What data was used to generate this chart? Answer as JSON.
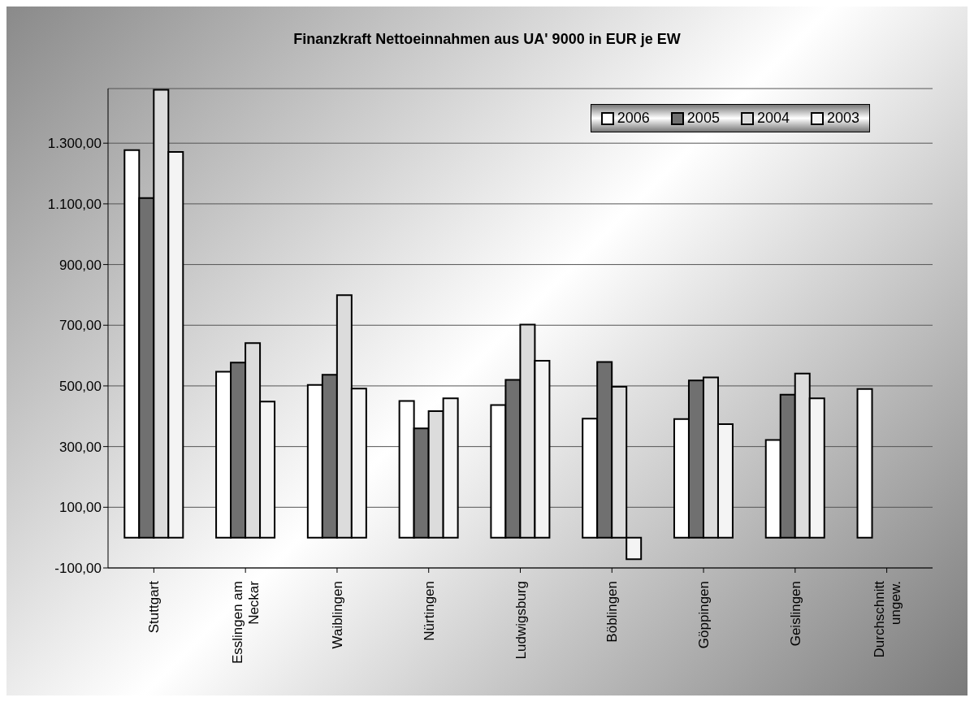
{
  "chart_data": {
    "type": "bar",
    "title": "Finanzkraft Nettoeinnahmen aus UA' 9000 in EUR je EW",
    "categories": [
      "Stuttgart",
      "Esslingen am Neckar",
      "Waiblingen",
      "Nürtingen",
      "Ludwigsburg",
      "Böblingen",
      "Göppingen",
      "Geislingen",
      "Durchschnitt ungew."
    ],
    "series": [
      {
        "name": "2006",
        "color": "#ffffff",
        "values": [
          1277,
          547,
          503,
          450,
          437,
          392,
          391,
          322,
          490
        ]
      },
      {
        "name": "2005",
        "color": "#707070",
        "values": [
          1119,
          577,
          537,
          360,
          520,
          579,
          518,
          471,
          null
        ]
      },
      {
        "name": "2004",
        "color": "#dcdcdc",
        "values": [
          1476,
          641,
          799,
          417,
          702,
          497,
          528,
          541,
          null
        ]
      },
      {
        "name": "2003",
        "color": "#f4f4f4",
        "values": [
          1271,
          448,
          491,
          459,
          583,
          -71,
          374,
          459,
          null
        ]
      }
    ],
    "ylim": [
      -100,
      1480
    ],
    "yticks": [
      {
        "value": -100,
        "label": "-100,00"
      },
      {
        "value": 100,
        "label": "100,00"
      },
      {
        "value": 300,
        "label": "300,00"
      },
      {
        "value": 500,
        "label": "500,00"
      },
      {
        "value": 700,
        "label": "700,00"
      },
      {
        "value": 900,
        "label": "900,00"
      },
      {
        "value": 1100,
        "label": "1.100,00"
      },
      {
        "value": 1300,
        "label": "1.300,00"
      }
    ],
    "grid": "y",
    "legend": "top right"
  }
}
